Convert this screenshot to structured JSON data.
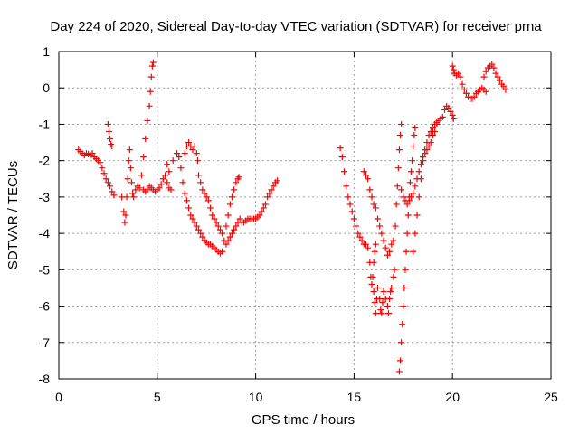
{
  "chart_data": {
    "type": "scatter",
    "title": "Day 224 of 2020, Sidereal Day-to-day VTEC variation (SDTVAR) for receiver prna",
    "xlabel": "GPS time / hours",
    "ylabel": "SDTVAR / TECUs",
    "xlim": [
      0,
      25
    ],
    "ylim": [
      -8,
      1
    ],
    "xticks": [
      0,
      5,
      10,
      15,
      20,
      25
    ],
    "yticks": [
      1,
      0,
      -1,
      -2,
      -3,
      -4,
      -5,
      -6,
      -7,
      -8
    ],
    "xtick_labels": [
      "0",
      "5",
      "10",
      "15",
      "20",
      "25"
    ],
    "ytick_labels": [
      "1",
      "0",
      "-1",
      "-2",
      "-3",
      "-4",
      "-5",
      "-6",
      "-7",
      "-8"
    ],
    "grid": true,
    "marker": "+",
    "color": "#ff0000",
    "series": [
      {
        "name": "prna",
        "points": [
          [
            1.0,
            -1.7
          ],
          [
            1.1,
            -1.75
          ],
          [
            1.2,
            -1.8
          ],
          [
            1.3,
            -1.85
          ],
          [
            1.4,
            -1.8
          ],
          [
            1.5,
            -1.82
          ],
          [
            1.6,
            -1.85
          ],
          [
            1.7,
            -1.8
          ],
          [
            1.8,
            -1.9
          ],
          [
            1.9,
            -1.95
          ],
          [
            2.0,
            -2.0
          ],
          [
            2.1,
            -2.05
          ],
          [
            2.2,
            -2.2
          ],
          [
            2.3,
            -2.35
          ],
          [
            2.4,
            -2.5
          ],
          [
            2.5,
            -2.6
          ],
          [
            2.6,
            -2.7
          ],
          [
            2.7,
            -2.85
          ],
          [
            2.8,
            -2.95
          ],
          [
            2.5,
            -1.0
          ],
          [
            2.55,
            -1.2
          ],
          [
            2.6,
            -1.4
          ],
          [
            2.65,
            -1.55
          ],
          [
            2.7,
            -1.6
          ],
          [
            3.2,
            -3.0
          ],
          [
            3.3,
            -3.4
          ],
          [
            3.35,
            -3.7
          ],
          [
            3.4,
            -3.5
          ],
          [
            3.45,
            -3.0
          ],
          [
            3.5,
            -2.5
          ],
          [
            3.55,
            -2.0
          ],
          [
            3.6,
            -1.7
          ],
          [
            3.65,
            -2.2
          ],
          [
            3.7,
            -2.6
          ],
          [
            3.75,
            -2.9
          ],
          [
            3.8,
            -3.0
          ],
          [
            3.9,
            -2.8
          ],
          [
            4.0,
            -2.7
          ],
          [
            4.1,
            -2.75
          ],
          [
            4.2,
            -2.4
          ],
          [
            4.3,
            -1.9
          ],
          [
            4.4,
            -1.4
          ],
          [
            4.5,
            -0.9
          ],
          [
            4.6,
            -0.5
          ],
          [
            4.65,
            -0.1
          ],
          [
            4.7,
            0.3
          ],
          [
            4.75,
            0.6
          ],
          [
            4.8,
            0.7
          ],
          [
            4.3,
            -2.8
          ],
          [
            4.4,
            -2.85
          ],
          [
            4.5,
            -2.8
          ],
          [
            4.6,
            -2.7
          ],
          [
            4.7,
            -2.75
          ],
          [
            4.8,
            -2.8
          ],
          [
            4.9,
            -2.85
          ],
          [
            5.0,
            -2.8
          ],
          [
            5.1,
            -2.75
          ],
          [
            5.2,
            -2.65
          ],
          [
            5.3,
            -2.5
          ],
          [
            5.4,
            -2.4
          ],
          [
            5.5,
            -2.6
          ],
          [
            5.6,
            -2.75
          ],
          [
            5.7,
            -2.8
          ],
          [
            5.5,
            -2.1
          ],
          [
            5.6,
            -2.3
          ],
          [
            5.8,
            -2.0
          ],
          [
            6.0,
            -1.8
          ],
          [
            6.1,
            -1.9
          ],
          [
            6.2,
            -2.2
          ],
          [
            6.3,
            -2.6
          ],
          [
            6.4,
            -2.9
          ],
          [
            6.5,
            -3.1
          ],
          [
            6.6,
            -3.3
          ],
          [
            6.7,
            -3.5
          ],
          [
            6.8,
            -3.6
          ],
          [
            6.4,
            -1.8
          ],
          [
            6.5,
            -1.6
          ],
          [
            6.6,
            -1.5
          ],
          [
            6.7,
            -1.6
          ],
          [
            6.8,
            -1.7
          ],
          [
            6.9,
            -1.6
          ],
          [
            7.0,
            -1.8
          ],
          [
            7.05,
            -2.0
          ],
          [
            6.9,
            -3.7
          ],
          [
            7.0,
            -3.8
          ],
          [
            7.1,
            -3.9
          ],
          [
            7.2,
            -4.0
          ],
          [
            7.3,
            -4.1
          ],
          [
            7.4,
            -4.2
          ],
          [
            7.5,
            -4.25
          ],
          [
            7.6,
            -4.3
          ],
          [
            7.7,
            -4.3
          ],
          [
            7.8,
            -4.35
          ],
          [
            7.9,
            -4.4
          ],
          [
            8.0,
            -4.45
          ],
          [
            8.1,
            -4.5
          ],
          [
            8.2,
            -4.55
          ],
          [
            8.3,
            -4.5
          ],
          [
            7.1,
            -2.4
          ],
          [
            7.2,
            -2.6
          ],
          [
            7.3,
            -2.8
          ],
          [
            7.4,
            -2.9
          ],
          [
            7.5,
            -3.0
          ],
          [
            7.6,
            -3.1
          ],
          [
            7.7,
            -3.3
          ],
          [
            7.8,
            -3.5
          ],
          [
            7.9,
            -3.6
          ],
          [
            8.0,
            -3.7
          ],
          [
            8.1,
            -3.8
          ],
          [
            8.2,
            -3.9
          ],
          [
            8.3,
            -4.0
          ],
          [
            8.4,
            -4.2
          ],
          [
            8.5,
            -4.3
          ],
          [
            8.6,
            -4.2
          ],
          [
            8.7,
            -4.1
          ],
          [
            8.8,
            -4.0
          ],
          [
            8.9,
            -3.9
          ],
          [
            9.0,
            -3.8
          ],
          [
            9.1,
            -3.7
          ],
          [
            9.2,
            -3.6
          ],
          [
            8.5,
            -3.8
          ],
          [
            8.6,
            -3.5
          ],
          [
            8.7,
            -3.2
          ],
          [
            8.8,
            -3.0
          ],
          [
            8.9,
            -2.8
          ],
          [
            9.0,
            -2.6
          ],
          [
            9.1,
            -2.5
          ],
          [
            9.15,
            -2.45
          ],
          [
            9.3,
            -3.7
          ],
          [
            9.4,
            -3.7
          ],
          [
            9.5,
            -3.65
          ],
          [
            9.6,
            -3.6
          ],
          [
            9.7,
            -3.6
          ],
          [
            9.8,
            -3.6
          ],
          [
            9.9,
            -3.6
          ],
          [
            10.0,
            -3.6
          ],
          [
            10.1,
            -3.55
          ],
          [
            10.2,
            -3.5
          ],
          [
            10.3,
            -3.4
          ],
          [
            10.4,
            -3.3
          ],
          [
            10.5,
            -3.2
          ],
          [
            10.6,
            -3.0
          ],
          [
            10.7,
            -2.9
          ],
          [
            10.8,
            -2.8
          ],
          [
            10.9,
            -2.7
          ],
          [
            11.0,
            -2.6
          ],
          [
            11.1,
            -2.55
          ],
          [
            14.3,
            -1.65
          ],
          [
            14.4,
            -1.9
          ],
          [
            14.5,
            -2.3
          ],
          [
            14.6,
            -2.7
          ],
          [
            14.7,
            -3.0
          ],
          [
            14.8,
            -3.2
          ],
          [
            14.9,
            -3.4
          ],
          [
            15.0,
            -3.6
          ],
          [
            15.1,
            -3.8
          ],
          [
            15.2,
            -4.0
          ],
          [
            15.3,
            -4.1
          ],
          [
            15.4,
            -4.2
          ],
          [
            15.5,
            -4.3
          ],
          [
            15.6,
            -4.3
          ],
          [
            15.7,
            -4.4
          ],
          [
            15.8,
            -4.8
          ],
          [
            15.85,
            -5.2
          ],
          [
            15.9,
            -5.4
          ],
          [
            15.95,
            -5.2
          ],
          [
            16.0,
            -4.8
          ],
          [
            16.05,
            -4.5
          ],
          [
            16.1,
            -4.3
          ],
          [
            16.0,
            -5.6
          ],
          [
            16.05,
            -5.9
          ],
          [
            16.1,
            -6.2
          ],
          [
            16.15,
            -5.8
          ],
          [
            16.2,
            -5.5
          ],
          [
            16.3,
            -5.8
          ],
          [
            16.35,
            -6.1
          ],
          [
            16.4,
            -6.2
          ],
          [
            16.45,
            -5.9
          ],
          [
            16.5,
            -5.6
          ],
          [
            16.6,
            -5.8
          ],
          [
            16.7,
            -6.0
          ],
          [
            16.75,
            -6.2
          ],
          [
            16.8,
            -5.8
          ],
          [
            16.85,
            -5.6
          ],
          [
            16.9,
            -5.5
          ],
          [
            17.0,
            -5.2
          ],
          [
            17.05,
            -5.0
          ],
          [
            15.5,
            -2.3
          ],
          [
            15.6,
            -2.4
          ],
          [
            15.7,
            -2.5
          ],
          [
            15.8,
            -2.8
          ],
          [
            15.9,
            -3.0
          ],
          [
            16.0,
            -3.2
          ],
          [
            16.1,
            -3.3
          ],
          [
            16.2,
            -3.6
          ],
          [
            16.3,
            -3.8
          ],
          [
            16.4,
            -4.0
          ],
          [
            16.5,
            -4.2
          ],
          [
            16.6,
            -4.4
          ],
          [
            16.7,
            -4.6
          ],
          [
            16.8,
            -4.5
          ],
          [
            16.9,
            -4.3
          ],
          [
            17.0,
            -4.2
          ],
          [
            17.1,
            -3.8
          ],
          [
            17.15,
            -3.2
          ],
          [
            17.2,
            -2.7
          ],
          [
            17.25,
            -2.2
          ],
          [
            17.3,
            -1.7
          ],
          [
            17.35,
            -1.3
          ],
          [
            17.4,
            -1.0
          ],
          [
            17.3,
            -7.8
          ],
          [
            17.35,
            -7.5
          ],
          [
            17.4,
            -7.0
          ],
          [
            17.45,
            -6.5
          ],
          [
            17.5,
            -6.0
          ],
          [
            17.55,
            -5.5
          ],
          [
            17.6,
            -5.0
          ],
          [
            17.65,
            -4.5
          ],
          [
            17.7,
            -4.0
          ],
          [
            17.75,
            -3.5
          ],
          [
            17.8,
            -3.0
          ],
          [
            17.85,
            -2.6
          ],
          [
            17.9,
            -2.3
          ],
          [
            17.95,
            -2.0
          ],
          [
            18.0,
            -1.6
          ],
          [
            18.05,
            -1.3
          ],
          [
            18.1,
            -1.1
          ],
          [
            17.4,
            -2.8
          ],
          [
            17.5,
            -3.0
          ],
          [
            17.6,
            -3.1
          ],
          [
            17.7,
            -3.2
          ],
          [
            17.8,
            -3.1
          ],
          [
            17.9,
            -3.0
          ],
          [
            18.0,
            -2.9
          ],
          [
            18.1,
            -2.7
          ],
          [
            18.2,
            -2.5
          ],
          [
            18.3,
            -2.3
          ],
          [
            18.4,
            -2.1
          ],
          [
            18.5,
            -1.9
          ],
          [
            18.6,
            -1.8
          ],
          [
            18.7,
            -1.7
          ],
          [
            18.8,
            -1.6
          ],
          [
            18.9,
            -1.5
          ],
          [
            19.0,
            -1.3
          ],
          [
            19.1,
            -1.2
          ],
          [
            19.2,
            -1.0
          ],
          [
            18.0,
            -4.5
          ],
          [
            18.1,
            -4.0
          ],
          [
            18.2,
            -3.5
          ],
          [
            18.3,
            -3.0
          ],
          [
            18.4,
            -2.5
          ],
          [
            18.5,
            -2.0
          ],
          [
            18.6,
            -1.7
          ],
          [
            18.7,
            -1.5
          ],
          [
            18.8,
            -1.3
          ],
          [
            18.9,
            -1.2
          ],
          [
            19.0,
            -1.1
          ],
          [
            19.1,
            -1.0
          ],
          [
            19.2,
            -0.95
          ],
          [
            19.3,
            -0.9
          ],
          [
            19.4,
            -0.85
          ],
          [
            19.5,
            -0.8
          ],
          [
            19.6,
            -0.6
          ],
          [
            19.7,
            -0.5
          ],
          [
            19.8,
            -0.55
          ],
          [
            19.9,
            -0.65
          ],
          [
            20.0,
            -0.75
          ],
          [
            20.05,
            -0.85
          ],
          [
            20.0,
            0.6
          ],
          [
            20.05,
            0.5
          ],
          [
            20.1,
            0.4
          ],
          [
            20.2,
            0.35
          ],
          [
            20.3,
            0.4
          ],
          [
            20.4,
            0.3
          ],
          [
            20.5,
            0.1
          ],
          [
            20.6,
            -0.05
          ],
          [
            20.7,
            -0.15
          ],
          [
            20.8,
            -0.25
          ],
          [
            20.9,
            -0.3
          ],
          [
            21.0,
            -0.3
          ],
          [
            21.1,
            -0.25
          ],
          [
            21.2,
            -0.15
          ],
          [
            21.3,
            -0.1
          ],
          [
            21.4,
            -0.05
          ],
          [
            21.5,
            0.0
          ],
          [
            21.6,
            -0.05
          ],
          [
            21.7,
            -0.1
          ],
          [
            21.6,
            0.3
          ],
          [
            21.7,
            0.45
          ],
          [
            21.8,
            0.55
          ],
          [
            21.9,
            0.6
          ],
          [
            22.0,
            0.65
          ],
          [
            22.1,
            0.55
          ],
          [
            22.2,
            0.4
          ],
          [
            22.3,
            0.3
          ],
          [
            22.4,
            0.2
          ],
          [
            22.5,
            0.1
          ],
          [
            22.6,
            0.05
          ],
          [
            22.7,
            -0.05
          ]
        ]
      }
    ]
  }
}
